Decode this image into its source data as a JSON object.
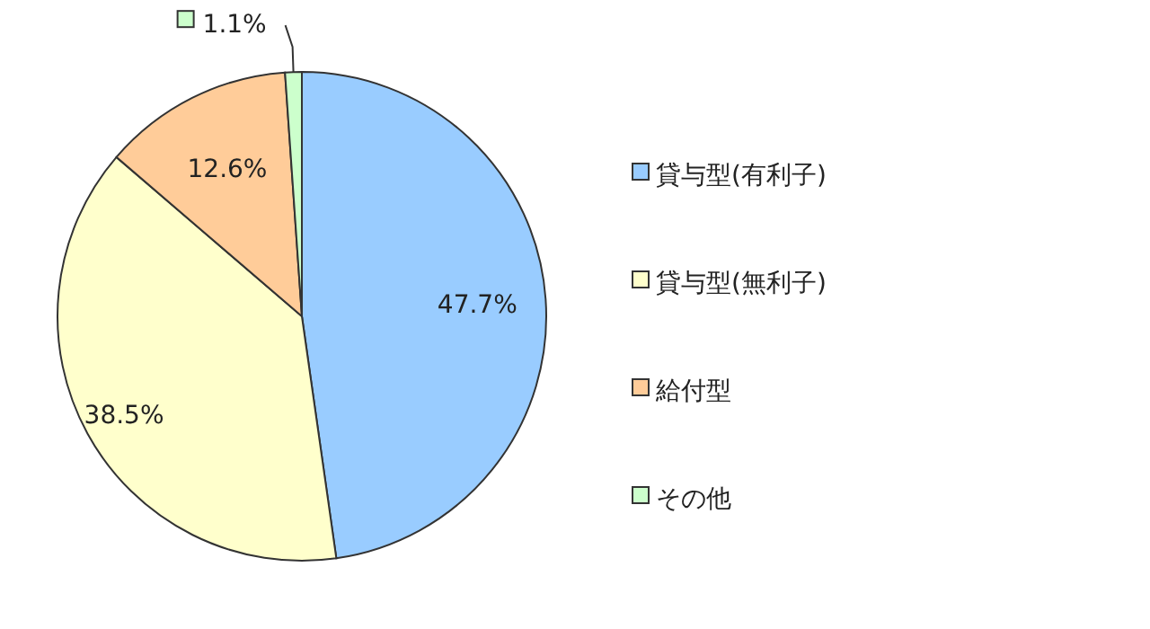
{
  "chart_data": {
    "type": "pie",
    "categories": [
      "貸与型(有利子)",
      "貸与型(無利子)",
      "給付型",
      "その他"
    ],
    "values": [
      47.7,
      38.5,
      12.6,
      1.1
    ],
    "colors": [
      "#99ccff",
      "#ffffcc",
      "#ffcc99",
      "#ccffcc"
    ],
    "value_labels": [
      "47.7%",
      "38.5%",
      "12.6%",
      "1.1%"
    ],
    "legend": "right"
  }
}
